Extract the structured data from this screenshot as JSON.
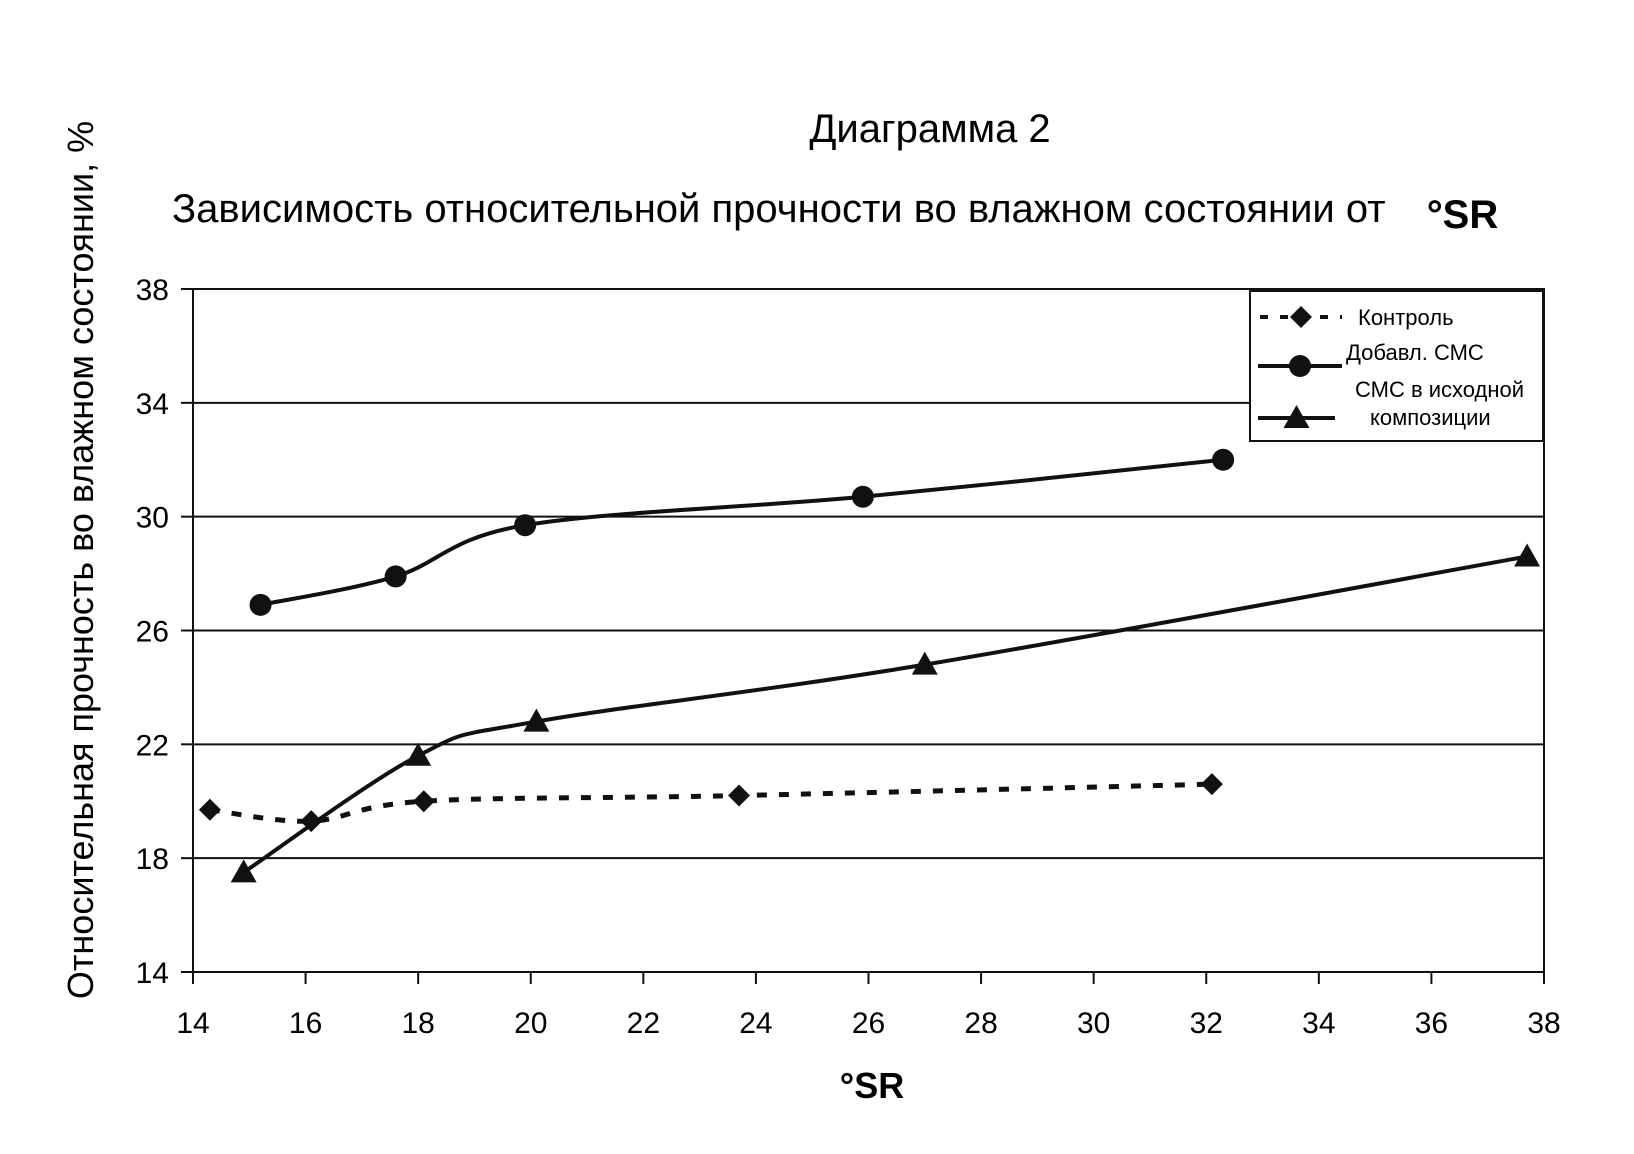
{
  "chart_data": {
    "type": "line",
    "title": "Диаграмма 2",
    "subtitle": "Зависимость относительной прочности во влажном состоянии от",
    "subtitle_unit": "°SR",
    "xlabel": "°SR",
    "ylabel": "Относительная прочность во влажном состоянии, %",
    "xlim": [
      14,
      38
    ],
    "ylim": [
      14,
      38
    ],
    "xticks": [
      "14",
      "16",
      "18",
      "20",
      "22",
      "24",
      "26",
      "28",
      "30",
      "32",
      "34",
      "36",
      "38"
    ],
    "yticks": [
      "14",
      "18",
      "22",
      "26",
      "30",
      "34",
      "38"
    ],
    "grid": "horizontal",
    "legend_position": "top-right",
    "series": [
      {
        "name": "Контроль",
        "marker": "diamond",
        "line": "dashed",
        "points": [
          [
            14.3,
            19.7
          ],
          [
            16.1,
            19.3
          ],
          [
            18.1,
            20.0
          ],
          [
            23.7,
            20.2
          ],
          [
            32.1,
            20.6
          ]
        ]
      },
      {
        "name": "Добавл. СМС",
        "marker": "circle",
        "line": "solid",
        "points": [
          [
            15.2,
            26.9
          ],
          [
            17.6,
            27.9
          ],
          [
            19.9,
            29.7
          ],
          [
            25.9,
            30.7
          ],
          [
            32.3,
            32.0
          ]
        ]
      },
      {
        "name": "СМС в исходной композиции",
        "name_lines": [
          "СМС в исходной",
          "композиции"
        ],
        "marker": "triangle",
        "line": "solid",
        "points": [
          [
            14.9,
            17.5
          ],
          [
            18.0,
            21.6
          ],
          [
            20.1,
            22.8
          ],
          [
            27.0,
            24.8
          ],
          [
            37.7,
            28.6
          ]
        ]
      }
    ]
  }
}
